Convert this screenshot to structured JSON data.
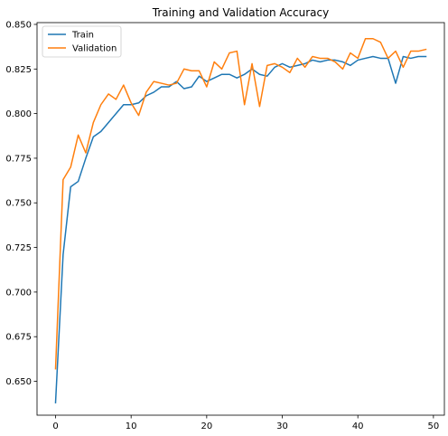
{
  "chart_data": {
    "type": "line",
    "title": "Training and Validation Accuracy",
    "xlabel": "",
    "ylabel": "",
    "xlim": [
      -2.45,
      51.45
    ],
    "ylim": [
      0.631,
      0.851
    ],
    "xticks": [
      0,
      10,
      20,
      30,
      40,
      50
    ],
    "yticks": [
      0.65,
      0.675,
      0.7,
      0.725,
      0.75,
      0.775,
      0.8,
      0.825,
      0.85
    ],
    "ytick_labels": [
      "0.650",
      "0.675",
      "0.700",
      "0.725",
      "0.750",
      "0.775",
      "0.800",
      "0.825",
      "0.850"
    ],
    "grid": false,
    "legend_position": "upper-left",
    "x": [
      0,
      1,
      2,
      3,
      4,
      5,
      6,
      7,
      8,
      9,
      10,
      11,
      12,
      13,
      14,
      15,
      16,
      17,
      18,
      19,
      20,
      21,
      22,
      23,
      24,
      25,
      26,
      27,
      28,
      29,
      30,
      31,
      32,
      33,
      34,
      35,
      36,
      37,
      38,
      39,
      40,
      41,
      42,
      43,
      44,
      45,
      46,
      47,
      48,
      49
    ],
    "series": [
      {
        "name": "Train",
        "color": "#1f77b4",
        "values": [
          0.638,
          0.721,
          0.759,
          0.762,
          0.775,
          0.787,
          0.79,
          0.795,
          0.8,
          0.805,
          0.805,
          0.806,
          0.81,
          0.812,
          0.815,
          0.815,
          0.818,
          0.814,
          0.815,
          0.821,
          0.818,
          0.82,
          0.822,
          0.822,
          0.82,
          0.822,
          0.825,
          0.822,
          0.821,
          0.826,
          0.828,
          0.826,
          0.827,
          0.828,
          0.83,
          0.829,
          0.83,
          0.83,
          0.829,
          0.827,
          0.83,
          0.831,
          0.832,
          0.831,
          0.831,
          0.817,
          0.832,
          0.831,
          0.832,
          0.832
        ]
      },
      {
        "name": "Validation",
        "color": "#ff7f0e",
        "values": [
          0.657,
          0.763,
          0.77,
          0.788,
          0.778,
          0.795,
          0.805,
          0.811,
          0.808,
          0.816,
          0.806,
          0.799,
          0.812,
          0.818,
          0.817,
          0.816,
          0.817,
          0.825,
          0.824,
          0.824,
          0.815,
          0.829,
          0.825,
          0.834,
          0.835,
          0.805,
          0.828,
          0.804,
          0.827,
          0.828,
          0.826,
          0.823,
          0.831,
          0.826,
          0.832,
          0.831,
          0.831,
          0.829,
          0.825,
          0.834,
          0.831,
          0.842,
          0.842,
          0.84,
          0.831,
          0.835,
          0.826,
          0.835,
          0.835,
          0.836
        ]
      }
    ]
  }
}
